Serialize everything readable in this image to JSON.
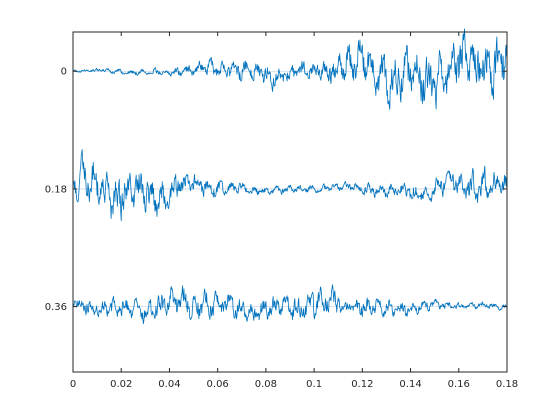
{
  "chart_data": {
    "type": "line",
    "title": "",
    "xlabel": "",
    "ylabel": "",
    "xlim": [
      0,
      0.18
    ],
    "ylim": [
      -0.06,
      0.46
    ],
    "y_direction": "reverse",
    "grid": false,
    "box": true,
    "x_ticks": [
      0,
      0.02,
      0.04,
      0.06,
      0.08,
      0.1,
      0.12,
      0.14,
      0.16,
      0.18
    ],
    "x_tick_labels": [
      "0",
      "0.02",
      "0.04",
      "0.06",
      "0.08",
      "0.1",
      "0.12",
      "0.14",
      "0.16",
      "0.18"
    ],
    "y_ticks": [
      0,
      0.18,
      0.36
    ],
    "y_tick_labels": [
      "0",
      "0.18",
      "0.36"
    ],
    "line_color": "#0072bd",
    "baseline_color": "#c8d7e6",
    "sample_interval": 0.0002,
    "series": [
      {
        "offset": 0,
        "envelope": {
          "x": [
            0,
            0.02,
            0.04,
            0.06,
            0.08,
            0.1,
            0.11,
            0.13,
            0.15,
            0.18
          ],
          "amplitude": [
            0.002,
            0.004,
            0.006,
            0.012,
            0.018,
            0.012,
            0.028,
            0.035,
            0.04,
            0.045
          ]
        }
      },
      {
        "offset": 0.18,
        "envelope": {
          "x": [
            0,
            0.02,
            0.035,
            0.05,
            0.07,
            0.09,
            0.11,
            0.13,
            0.15,
            0.165,
            0.18
          ],
          "amplitude": [
            0.032,
            0.035,
            0.03,
            0.016,
            0.008,
            0.006,
            0.006,
            0.01,
            0.016,
            0.024,
            0.02
          ]
        }
      },
      {
        "offset": 0.36,
        "envelope": {
          "x": [
            0,
            0.03,
            0.045,
            0.06,
            0.08,
            0.1,
            0.12,
            0.14,
            0.16,
            0.18
          ],
          "amplitude": [
            0.012,
            0.016,
            0.024,
            0.02,
            0.016,
            0.022,
            0.015,
            0.01,
            0.005,
            0.004
          ]
        }
      }
    ]
  }
}
